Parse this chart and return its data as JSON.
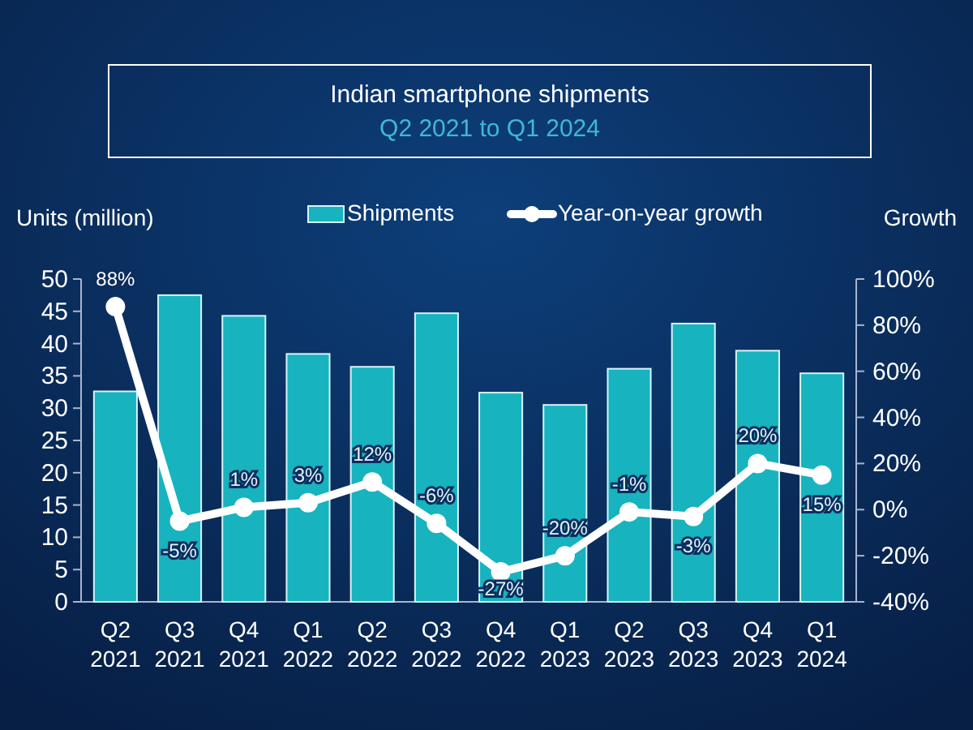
{
  "chart_data": {
    "type": "bar",
    "title": "Indian smartphone shipments",
    "subtitle": "Q2 2021 to Q1 2024",
    "ylabel": "Units (million)",
    "y2label": "Growth",
    "categories": [
      "Q2 2021",
      "Q3 2021",
      "Q4 2021",
      "Q1 2022",
      "Q2 2022",
      "Q3 2022",
      "Q4 2022",
      "Q1 2023",
      "Q2 2023",
      "Q3 2023",
      "Q4 2023",
      "Q1 2024"
    ],
    "series": [
      {
        "name": "Shipments",
        "color": "#17b3bf",
        "values": [
          32.6,
          47.5,
          44.3,
          38.4,
          36.4,
          44.7,
          32.4,
          30.5,
          36.1,
          43.1,
          38.9,
          35.4
        ]
      },
      {
        "name": "Year-on-year growth",
        "type": "line",
        "axis": "y2",
        "color": "#ffffff",
        "marker": "circle",
        "values": [
          88,
          -5,
          1,
          3,
          12,
          -6,
          -27,
          -20,
          -1,
          -3,
          20,
          15
        ],
        "value_labels": [
          "88%",
          "-5%",
          "1%",
          "3%",
          "12%",
          "-6%",
          "-27%",
          "-20%",
          "-1%",
          "-3%",
          "20%",
          "15%"
        ]
      }
    ],
    "ylim": [
      0,
      50
    ],
    "yticks": [
      0,
      5,
      10,
      15,
      20,
      25,
      30,
      35,
      40,
      45,
      50
    ],
    "y2lim": [
      -40,
      100
    ],
    "y2ticks": [
      {
        "value": -40,
        "label": "-40%"
      },
      {
        "value": -20,
        "label": "-20%"
      },
      {
        "value": 0,
        "label": "0%"
      },
      {
        "value": 20,
        "label": "20%"
      },
      {
        "value": 40,
        "label": "40%"
      },
      {
        "value": 60,
        "label": "60%"
      },
      {
        "value": 80,
        "label": "80%"
      },
      {
        "value": 100,
        "label": "100%"
      }
    ],
    "legend": "top",
    "grid": false
  }
}
